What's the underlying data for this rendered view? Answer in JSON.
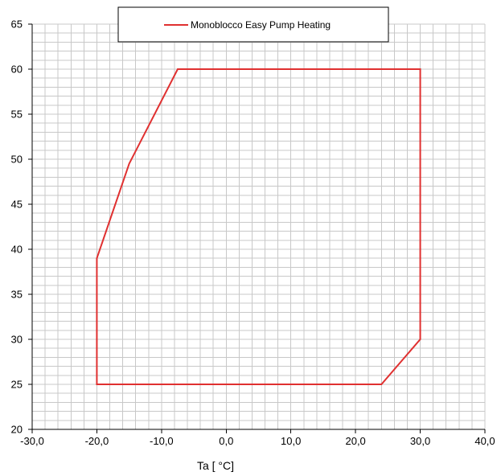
{
  "chart_data": {
    "type": "line",
    "title": "",
    "xlabel": "Ta [ °C]",
    "ylabel": "",
    "xlim": [
      -30,
      40
    ],
    "ylim": [
      20,
      65
    ],
    "x_ticks": [
      -30,
      -20,
      -10,
      0,
      10,
      20,
      30,
      40
    ],
    "x_tick_labels": [
      "-30,0",
      "-20,0",
      "-10,0",
      "0,0",
      "10,0",
      "20,0",
      "30,0",
      "40,0"
    ],
    "y_ticks": [
      20,
      25,
      30,
      35,
      40,
      45,
      50,
      55,
      60,
      65
    ],
    "y_tick_labels": [
      "20",
      "25",
      "30",
      "35",
      "40",
      "45",
      "50",
      "55",
      "60",
      "65"
    ],
    "minor_x_step": 2,
    "minor_y_step": 1,
    "grid": true,
    "legend_position": "top-center",
    "series": [
      {
        "name": "Monoblocco Easy Pump Heating",
        "color": "#e03030",
        "closed": true,
        "points": [
          {
            "x": -20,
            "y": 25
          },
          {
            "x": -20,
            "y": 39
          },
          {
            "x": -15,
            "y": 49.5
          },
          {
            "x": -7.5,
            "y": 60
          },
          {
            "x": 30,
            "y": 60
          },
          {
            "x": 30,
            "y": 30
          },
          {
            "x": 24,
            "y": 25
          }
        ]
      }
    ]
  }
}
